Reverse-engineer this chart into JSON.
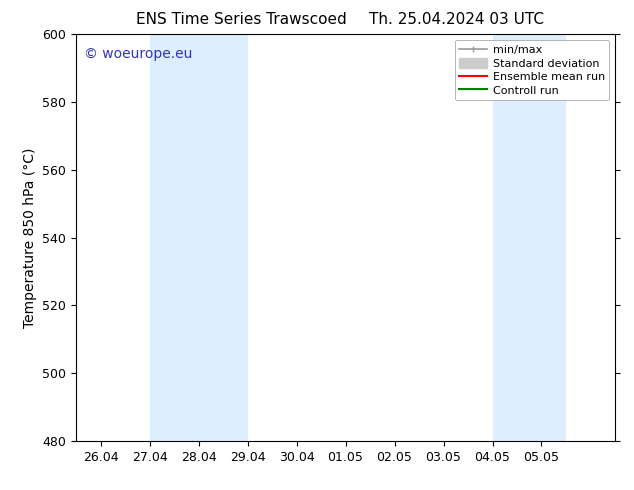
{
  "title_left": "ENS Time Series Trawscoed",
  "title_right": "Th. 25.04.2024 03 UTC",
  "ylabel": "Temperature 850 hPa (°C)",
  "xlim_left": -0.5,
  "xlim_right": 10.5,
  "ylim_bottom": 480,
  "ylim_top": 600,
  "yticks": [
    480,
    500,
    520,
    540,
    560,
    580,
    600
  ],
  "xtick_labels": [
    "26.04",
    "27.04",
    "28.04",
    "29.04",
    "30.04",
    "01.05",
    "02.05",
    "03.05",
    "04.05",
    "05.05"
  ],
  "xtick_positions": [
    0,
    1,
    2,
    3,
    4,
    5,
    6,
    7,
    8,
    9
  ],
  "shaded_bands": [
    {
      "x_start": 1,
      "x_end": 3
    },
    {
      "x_start": 8,
      "x_end": 9.5
    }
  ],
  "band_color": "#ddeeff",
  "watermark": "© woeurope.eu",
  "watermark_color": "#3333bb",
  "legend_entries": [
    {
      "label": "min/max",
      "color": "#999999",
      "lw": 1.2
    },
    {
      "label": "Standard deviation",
      "color": "#cccccc",
      "lw": 8
    },
    {
      "label": "Ensemble mean run",
      "color": "red",
      "lw": 1.5
    },
    {
      "label": "Controll run",
      "color": "green",
      "lw": 1.5
    }
  ],
  "border_color": "#000000",
  "title_fontsize": 11,
  "tick_fontsize": 9,
  "ylabel_fontsize": 10,
  "watermark_fontsize": 10,
  "legend_fontsize": 8
}
